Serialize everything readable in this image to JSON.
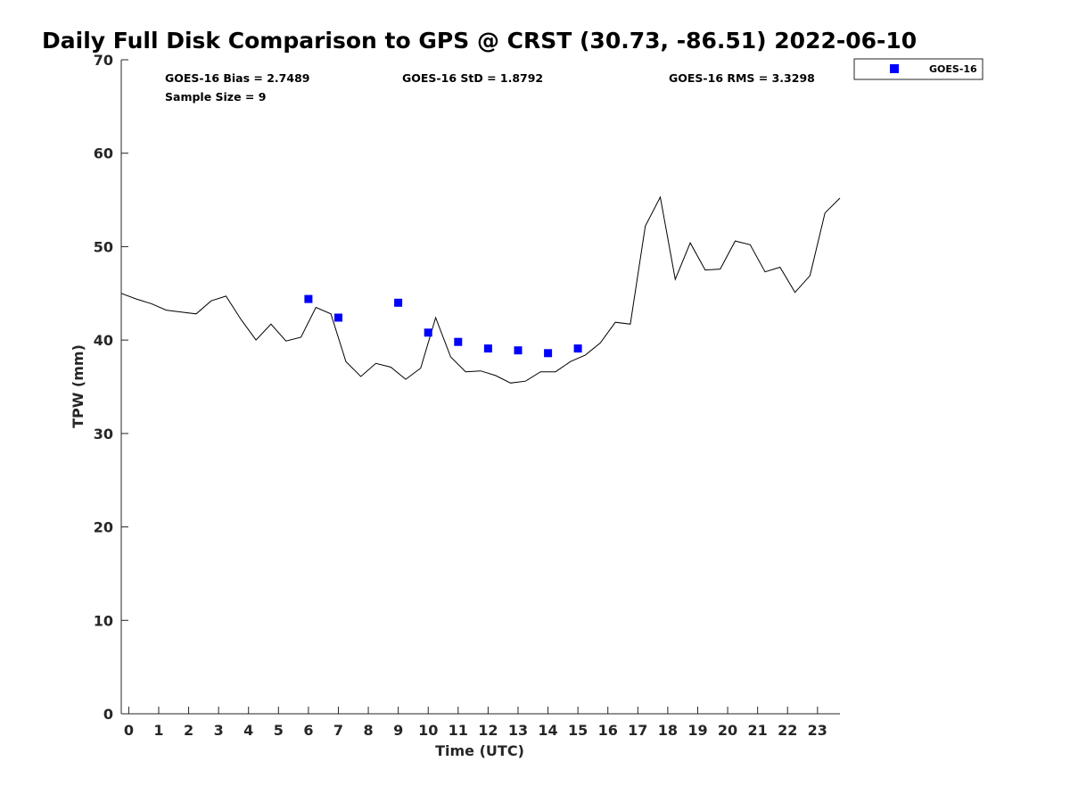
{
  "chart_data": {
    "type": "line",
    "title": "Daily Full Disk Comparison to GPS @ CRST (30.73, -86.51) 2022-06-10",
    "xlabel": "Time (UTC)",
    "ylabel": "TPW (mm)",
    "xlim": [
      -0.25,
      23.75
    ],
    "ylim": [
      0,
      70
    ],
    "x_ticks": [
      "0",
      "1",
      "2",
      "3",
      "4",
      "5",
      "6",
      "7",
      "8",
      "9",
      "10",
      "11",
      "12",
      "13",
      "14",
      "15",
      "16",
      "17",
      "18",
      "19",
      "20",
      "21",
      "22",
      "23"
    ],
    "y_ticks": [
      "0",
      "10",
      "20",
      "30",
      "40",
      "50",
      "60",
      "70"
    ],
    "grid": false,
    "legend_position": "top-right",
    "stats": {
      "bias": "GOES-16 Bias = 2.7489",
      "std": "GOES-16 StD = 1.8792",
      "rms": "GOES-16 RMS = 3.3298",
      "sample": "Sample Size = 9"
    },
    "series": [
      {
        "type": "line",
        "color": "#000000",
        "x": [
          -0.25,
          0.25,
          0.75,
          1.25,
          1.75,
          2.25,
          2.75,
          3.25,
          3.75,
          4.25,
          4.75,
          5.25,
          5.75,
          6.25,
          6.75,
          7.25,
          7.75,
          8.25,
          8.75,
          9.25,
          9.75,
          10.25,
          10.75,
          11.25,
          11.75,
          12.25,
          12.75,
          13.25,
          13.75,
          14.25,
          14.75,
          15.25,
          15.75,
          16.25,
          16.75,
          17.25,
          17.75,
          18.25,
          18.75,
          19.25,
          19.75,
          20.25,
          20.75,
          21.25,
          21.75,
          22.25,
          22.75,
          23.25,
          23.75
        ],
        "values": [
          45.0,
          44.4,
          43.9,
          43.2,
          43.0,
          42.8,
          44.2,
          44.7,
          42.2,
          40.0,
          41.7,
          39.9,
          40.3,
          43.5,
          42.8,
          37.7,
          36.1,
          37.5,
          37.1,
          35.8,
          37.0,
          42.4,
          38.2,
          36.6,
          36.7,
          36.2,
          35.4,
          35.6,
          36.6,
          36.6,
          37.7,
          38.4,
          39.7,
          41.9,
          41.7,
          52.2,
          55.3,
          46.5,
          50.4,
          47.5,
          47.6,
          50.6,
          50.2,
          47.3,
          47.8,
          45.1,
          46.9,
          53.6,
          55.2
        ]
      },
      {
        "type": "scatter",
        "name": "GOES-16",
        "color": "#0000ff",
        "x": [
          6,
          7,
          9,
          10,
          11,
          12,
          13,
          14,
          15
        ],
        "values": [
          44.4,
          42.4,
          44.0,
          40.8,
          39.8,
          39.1,
          38.9,
          38.6,
          39.1
        ]
      }
    ]
  }
}
